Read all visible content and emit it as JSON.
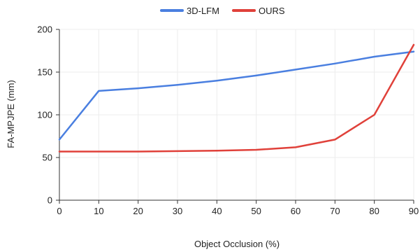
{
  "chart_data": {
    "type": "line",
    "title": "",
    "xlabel": "Object Occlusion (%)",
    "ylabel": "FA-MPJPE (mm)",
    "x": [
      0,
      10,
      20,
      30,
      40,
      50,
      60,
      70,
      80,
      90
    ],
    "xlim": [
      0,
      90
    ],
    "ylim": [
      0,
      200
    ],
    "xticks": [
      "0",
      "10",
      "20",
      "30",
      "40",
      "50",
      "60",
      "70",
      "80",
      "90"
    ],
    "yticks": [
      "0",
      "50",
      "100",
      "150",
      "200"
    ],
    "grid": true,
    "legend_position": "top-center",
    "series": [
      {
        "name": "3D-LFM",
        "color": "#4a7fe0",
        "values": [
          71,
          128,
          131,
          135,
          140,
          146,
          153,
          160,
          168,
          174
        ]
      },
      {
        "name": "OURS",
        "color": "#e0413a",
        "values": [
          57,
          57,
          57,
          57.5,
          58,
          59,
          62,
          71,
          100,
          182
        ]
      }
    ]
  }
}
